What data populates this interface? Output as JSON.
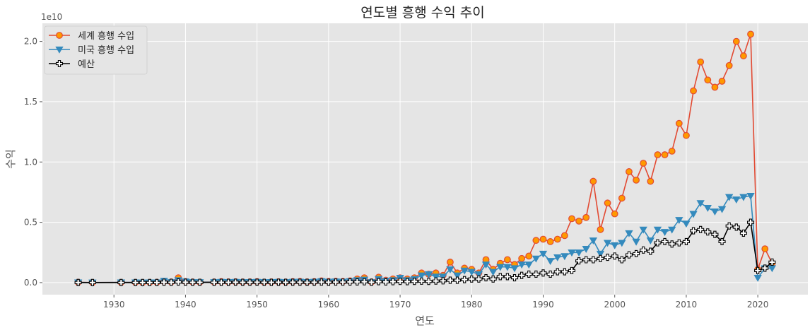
{
  "chart_data": {
    "type": "line",
    "title": "연도별 흥행 수익 추이",
    "xlabel": "연도",
    "ylabel": "수익",
    "y_offset_label": "1e10",
    "xlim": [
      1920,
      2027
    ],
    "ylim": [
      -0.1,
      2.15
    ],
    "y_unit_multiplier": 10000000000.0,
    "x_ticks": [
      1930,
      1940,
      1950,
      1960,
      1970,
      1980,
      1990,
      2000,
      2010,
      2020
    ],
    "y_ticks": [
      0.0,
      0.5,
      1.0,
      1.5,
      2.0
    ],
    "y_tick_labels": [
      "0.0",
      "0.5",
      "1.0",
      "1.5",
      "2.0"
    ],
    "grid": true,
    "legend_position": "top-left",
    "series": [
      {
        "name": "세계 흥행 수입",
        "color": "#E24A33",
        "marker": "circle",
        "marker_fill": "#FF9900",
        "points": [
          [
            1925,
            0.003
          ],
          [
            1927,
            0.001
          ],
          [
            1931,
            0.002
          ],
          [
            1933,
            0.002
          ],
          [
            1934,
            0.001
          ],
          [
            1935,
            0.002
          ],
          [
            1936,
            0.003
          ],
          [
            1937,
            0.01
          ],
          [
            1938,
            0.005
          ],
          [
            1939,
            0.04
          ],
          [
            1940,
            0.01
          ],
          [
            1941,
            0.005
          ],
          [
            1942,
            0.004
          ],
          [
            1944,
            0.005
          ],
          [
            1945,
            0.008
          ],
          [
            1946,
            0.006
          ],
          [
            1947,
            0.007
          ],
          [
            1948,
            0.005
          ],
          [
            1949,
            0.006
          ],
          [
            1950,
            0.008
          ],
          [
            1951,
            0.004
          ],
          [
            1952,
            0.006
          ],
          [
            1953,
            0.007
          ],
          [
            1954,
            0.005
          ],
          [
            1955,
            0.008
          ],
          [
            1956,
            0.01
          ],
          [
            1957,
            0.006
          ],
          [
            1958,
            0.008
          ],
          [
            1959,
            0.015
          ],
          [
            1960,
            0.01
          ],
          [
            1961,
            0.012
          ],
          [
            1962,
            0.01
          ],
          [
            1963,
            0.015
          ],
          [
            1964,
            0.03
          ],
          [
            1965,
            0.04
          ],
          [
            1966,
            0.005
          ],
          [
            1967,
            0.045
          ],
          [
            1968,
            0.02
          ],
          [
            1969,
            0.03
          ],
          [
            1970,
            0.04
          ],
          [
            1971,
            0.03
          ],
          [
            1972,
            0.04
          ],
          [
            1973,
            0.08
          ],
          [
            1974,
            0.07
          ],
          [
            1975,
            0.08
          ],
          [
            1976,
            0.06
          ],
          [
            1977,
            0.17
          ],
          [
            1978,
            0.08
          ],
          [
            1979,
            0.12
          ],
          [
            1980,
            0.11
          ],
          [
            1981,
            0.08
          ],
          [
            1982,
            0.19
          ],
          [
            1983,
            0.11
          ],
          [
            1984,
            0.16
          ],
          [
            1985,
            0.19
          ],
          [
            1986,
            0.15
          ],
          [
            1987,
            0.2
          ],
          [
            1988,
            0.22
          ],
          [
            1989,
            0.35
          ],
          [
            1990,
            0.36
          ],
          [
            1991,
            0.34
          ],
          [
            1992,
            0.36
          ],
          [
            1993,
            0.39
          ],
          [
            1994,
            0.53
          ],
          [
            1995,
            0.51
          ],
          [
            1996,
            0.54
          ],
          [
            1997,
            0.84
          ],
          [
            1998,
            0.44
          ],
          [
            1999,
            0.66
          ],
          [
            2000,
            0.57
          ],
          [
            2001,
            0.7
          ],
          [
            2002,
            0.92
          ],
          [
            2003,
            0.85
          ],
          [
            2004,
            0.99
          ],
          [
            2005,
            0.84
          ],
          [
            2006,
            1.06
          ],
          [
            2007,
            1.06
          ],
          [
            2008,
            1.09
          ],
          [
            2009,
            1.32
          ],
          [
            2010,
            1.22
          ],
          [
            2011,
            1.59
          ],
          [
            2012,
            1.83
          ],
          [
            2013,
            1.68
          ],
          [
            2014,
            1.62
          ],
          [
            2015,
            1.67
          ],
          [
            2016,
            1.8
          ],
          [
            2017,
            2.0
          ],
          [
            2018,
            1.88
          ],
          [
            2019,
            2.06
          ],
          [
            2020,
            0.11
          ],
          [
            2021,
            0.28
          ],
          [
            2022,
            0.16
          ]
        ]
      },
      {
        "name": "미국 흥행 수입",
        "color": "#348ABD",
        "marker": "triangle-down",
        "marker_fill": "#348ABD",
        "points": [
          [
            1925,
            0.002
          ],
          [
            1927,
            0.001
          ],
          [
            1931,
            0.002
          ],
          [
            1933,
            0.002
          ],
          [
            1934,
            0.001
          ],
          [
            1935,
            0.002
          ],
          [
            1936,
            0.002
          ],
          [
            1937,
            0.015
          ],
          [
            1938,
            0.004
          ],
          [
            1939,
            0.02
          ],
          [
            1940,
            0.01
          ],
          [
            1941,
            0.004
          ],
          [
            1942,
            0.004
          ],
          [
            1944,
            0.004
          ],
          [
            1945,
            0.006
          ],
          [
            1946,
            0.005
          ],
          [
            1947,
            0.006
          ],
          [
            1948,
            0.004
          ],
          [
            1949,
            0.005
          ],
          [
            1950,
            0.006
          ],
          [
            1951,
            0.004
          ],
          [
            1952,
            0.005
          ],
          [
            1953,
            0.006
          ],
          [
            1954,
            0.004
          ],
          [
            1955,
            0.007
          ],
          [
            1956,
            0.008
          ],
          [
            1957,
            0.005
          ],
          [
            1958,
            0.007
          ],
          [
            1959,
            0.012
          ],
          [
            1960,
            0.008
          ],
          [
            1961,
            0.01
          ],
          [
            1962,
            0.008
          ],
          [
            1963,
            0.012
          ],
          [
            1964,
            0.02
          ],
          [
            1965,
            0.025
          ],
          [
            1966,
            0.004
          ],
          [
            1967,
            0.03
          ],
          [
            1968,
            0.015
          ],
          [
            1969,
            0.02
          ],
          [
            1970,
            0.04
          ],
          [
            1971,
            0.02
          ],
          [
            1972,
            0.03
          ],
          [
            1973,
            0.06
          ],
          [
            1974,
            0.07
          ],
          [
            1975,
            0.05
          ],
          [
            1976,
            0.05
          ],
          [
            1977,
            0.11
          ],
          [
            1978,
            0.06
          ],
          [
            1979,
            0.1
          ],
          [
            1980,
            0.09
          ],
          [
            1981,
            0.07
          ],
          [
            1982,
            0.15
          ],
          [
            1983,
            0.09
          ],
          [
            1984,
            0.13
          ],
          [
            1985,
            0.13
          ],
          [
            1986,
            0.12
          ],
          [
            1987,
            0.15
          ],
          [
            1988,
            0.15
          ],
          [
            1989,
            0.2
          ],
          [
            1990,
            0.24
          ],
          [
            1991,
            0.18
          ],
          [
            1992,
            0.21
          ],
          [
            1993,
            0.22
          ],
          [
            1994,
            0.25
          ],
          [
            1995,
            0.25
          ],
          [
            1996,
            0.28
          ],
          [
            1997,
            0.35
          ],
          [
            1998,
            0.24
          ],
          [
            1999,
            0.33
          ],
          [
            2000,
            0.31
          ],
          [
            2001,
            0.33
          ],
          [
            2002,
            0.41
          ],
          [
            2003,
            0.34
          ],
          [
            2004,
            0.44
          ],
          [
            2005,
            0.35
          ],
          [
            2006,
            0.44
          ],
          [
            2007,
            0.42
          ],
          [
            2008,
            0.44
          ],
          [
            2009,
            0.52
          ],
          [
            2010,
            0.49
          ],
          [
            2011,
            0.57
          ],
          [
            2012,
            0.66
          ],
          [
            2013,
            0.62
          ],
          [
            2014,
            0.59
          ],
          [
            2015,
            0.61
          ],
          [
            2016,
            0.71
          ],
          [
            2017,
            0.69
          ],
          [
            2018,
            0.71
          ],
          [
            2019,
            0.72
          ],
          [
            2020,
            0.04
          ],
          [
            2021,
            0.12
          ],
          [
            2022,
            0.12
          ]
        ]
      },
      {
        "name": "예산",
        "color": "#000000",
        "marker": "plus",
        "marker_fill": "#FFFFFF",
        "points": [
          [
            1925,
            0.001
          ],
          [
            1927,
            0.001
          ],
          [
            1931,
            0.001
          ],
          [
            1933,
            0.001
          ],
          [
            1934,
            0.001
          ],
          [
            1935,
            0.001
          ],
          [
            1936,
            0.001
          ],
          [
            1937,
            0.003
          ],
          [
            1938,
            0.002
          ],
          [
            1939,
            0.005
          ],
          [
            1940,
            0.003
          ],
          [
            1941,
            0.002
          ],
          [
            1942,
            0.002
          ],
          [
            1944,
            0.002
          ],
          [
            1945,
            0.002
          ],
          [
            1946,
            0.002
          ],
          [
            1947,
            0.003
          ],
          [
            1948,
            0.002
          ],
          [
            1949,
            0.002
          ],
          [
            1950,
            0.003
          ],
          [
            1951,
            0.002
          ],
          [
            1952,
            0.002
          ],
          [
            1953,
            0.003
          ],
          [
            1954,
            0.002
          ],
          [
            1955,
            0.003
          ],
          [
            1956,
            0.003
          ],
          [
            1957,
            0.002
          ],
          [
            1958,
            0.003
          ],
          [
            1959,
            0.004
          ],
          [
            1960,
            0.003
          ],
          [
            1961,
            0.004
          ],
          [
            1962,
            0.004
          ],
          [
            1963,
            0.005
          ],
          [
            1964,
            0.006
          ],
          [
            1965,
            0.007
          ],
          [
            1966,
            0.003
          ],
          [
            1967,
            0.008
          ],
          [
            1968,
            0.006
          ],
          [
            1969,
            0.008
          ],
          [
            1970,
            0.01
          ],
          [
            1971,
            0.008
          ],
          [
            1972,
            0.01
          ],
          [
            1973,
            0.012
          ],
          [
            1974,
            0.01
          ],
          [
            1975,
            0.013
          ],
          [
            1976,
            0.015
          ],
          [
            1977,
            0.02
          ],
          [
            1978,
            0.02
          ],
          [
            1979,
            0.025
          ],
          [
            1980,
            0.03
          ],
          [
            1981,
            0.03
          ],
          [
            1982,
            0.04
          ],
          [
            1983,
            0.03
          ],
          [
            1984,
            0.05
          ],
          [
            1985,
            0.05
          ],
          [
            1986,
            0.04
          ],
          [
            1987,
            0.06
          ],
          [
            1988,
            0.07
          ],
          [
            1989,
            0.07
          ],
          [
            1990,
            0.08
          ],
          [
            1991,
            0.07
          ],
          [
            1992,
            0.09
          ],
          [
            1993,
            0.09
          ],
          [
            1994,
            0.1
          ],
          [
            1995,
            0.18
          ],
          [
            1996,
            0.19
          ],
          [
            1997,
            0.19
          ],
          [
            1998,
            0.2
          ],
          [
            1999,
            0.21
          ],
          [
            2000,
            0.22
          ],
          [
            2001,
            0.19
          ],
          [
            2002,
            0.23
          ],
          [
            2003,
            0.24
          ],
          [
            2004,
            0.27
          ],
          [
            2005,
            0.26
          ],
          [
            2006,
            0.33
          ],
          [
            2007,
            0.34
          ],
          [
            2008,
            0.32
          ],
          [
            2009,
            0.33
          ],
          [
            2010,
            0.34
          ],
          [
            2011,
            0.43
          ],
          [
            2012,
            0.44
          ],
          [
            2013,
            0.42
          ],
          [
            2014,
            0.4
          ],
          [
            2015,
            0.34
          ],
          [
            2016,
            0.47
          ],
          [
            2017,
            0.46
          ],
          [
            2018,
            0.41
          ],
          [
            2019,
            0.5
          ],
          [
            2020,
            0.1
          ],
          [
            2021,
            0.12
          ],
          [
            2022,
            0.17
          ]
        ]
      }
    ]
  }
}
